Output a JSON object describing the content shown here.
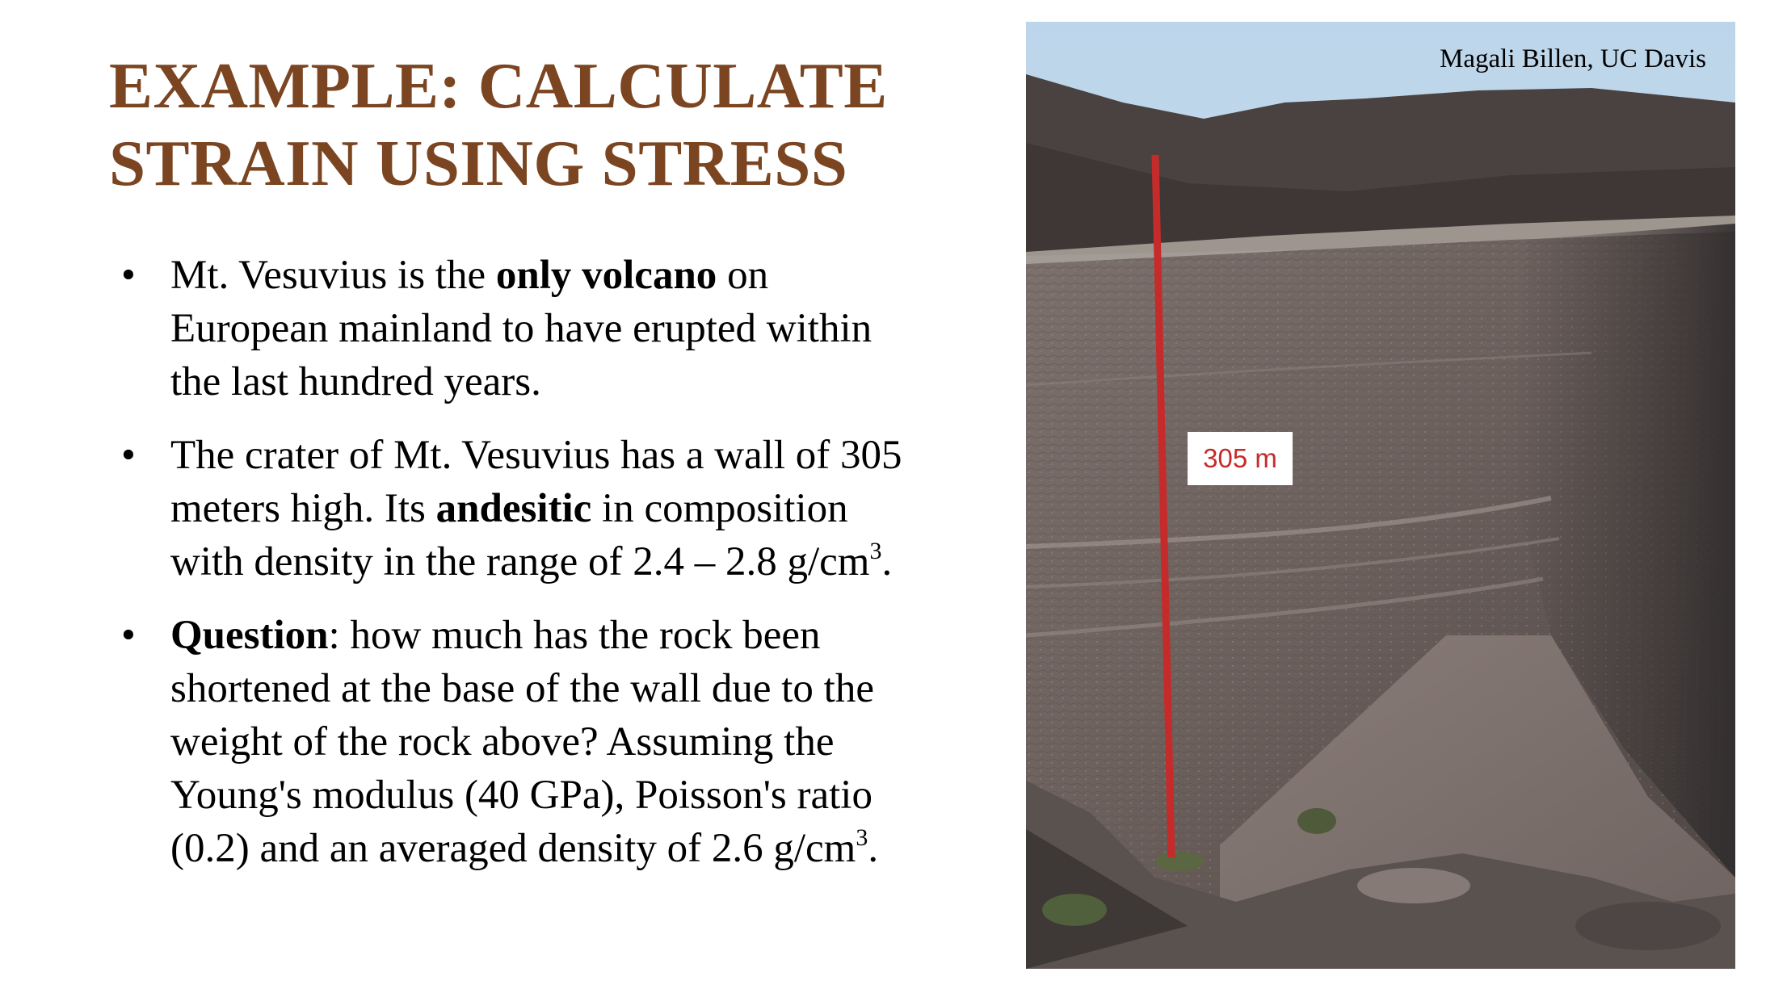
{
  "slide": {
    "title_lines": [
      "EXAMPLE: CALCULATE",
      "STRAIN USING STRESS"
    ],
    "bullet_glyph": "•",
    "bullets": [
      {
        "lines": [
          {
            "t1": "Mt. Vesuvius is the ",
            "b": "only volcano",
            "t2": " on"
          },
          {
            "t": "European mainland to have erupted within"
          },
          {
            "t": "the last hundred years."
          }
        ]
      },
      {
        "lines": [
          {
            "t": "The crater of Mt. Vesuvius has a wall of 305"
          },
          {
            "t1": "meters high. Its ",
            "b": "andesitic",
            "t2": " in composition"
          },
          {
            "t1": "with density in the range of 2.4 – 2.8 g/cm",
            "sup": "3",
            "t2": "."
          }
        ]
      },
      {
        "lines": [
          {
            "b": "Question",
            "t2": ": how much has the rock been"
          },
          {
            "t": "shortened at the base of the wall due to the"
          },
          {
            "t": "weight of the rock above? Assuming the"
          },
          {
            "t": "Young's modulus (40 GPa), Poisson's ratio"
          },
          {
            "t1": "(0.2) and an averaged density of 2.6 g/cm",
            "sup": "3",
            "t2": "."
          }
        ]
      }
    ]
  },
  "photo": {
    "credit": "Magali Billen, UC Davis",
    "scale_label": "305 m",
    "scale_color": "#c62b2b",
    "subject": "crater wall of Mt. Vesuvius"
  },
  "colors": {
    "title": "#7b4521",
    "text": "#000000",
    "background": "#ffffff"
  }
}
